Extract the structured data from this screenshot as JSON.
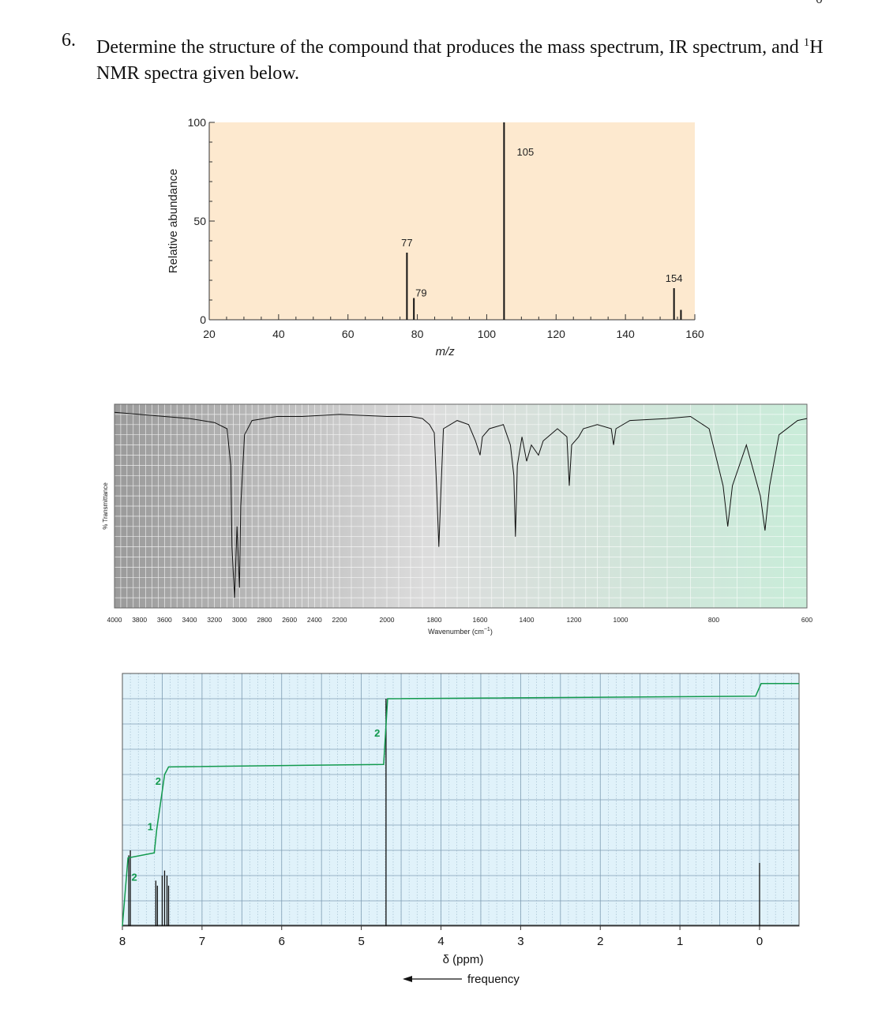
{
  "question": {
    "number": "6.",
    "text_before": "Determine the structure of the compound that produces the mass spectrum, IR spectrum, and ",
    "superscript": "1",
    "text_after": "H NMR spectra given below.",
    "corner_mark": "0"
  },
  "chart_data": [
    {
      "type": "bar",
      "name": "mass-spectrum",
      "xlabel": "m/z",
      "ylabel": "Relative abundance",
      "xlim": [
        20,
        160
      ],
      "ylim": [
        0,
        100
      ],
      "xticks": [
        20,
        40,
        60,
        80,
        100,
        120,
        140,
        160
      ],
      "yticks": [
        0,
        50,
        100
      ],
      "background": "#fde9cf",
      "peaks": [
        {
          "x": 77,
          "y": 34,
          "label": "77"
        },
        {
          "x": 79,
          "y": 11,
          "label": "79"
        },
        {
          "x": 105,
          "y": 100,
          "label": "105"
        },
        {
          "x": 154,
          "y": 16,
          "label": "154"
        },
        {
          "x": 156,
          "y": 5,
          "label": ""
        }
      ]
    },
    {
      "type": "line",
      "name": "ir-spectrum",
      "xlabel": "Wavenumber (cm",
      "xlabel_sup": "−1",
      "xlabel_close": ")",
      "ylabel": "% Transmittance",
      "xticks": [
        "4000",
        "3800",
        "3600",
        "3400",
        "3200",
        "3000",
        "2800",
        "2600",
        "2400",
        "2200",
        "2000",
        "1800",
        "1600",
        "1400",
        "1200",
        "1000",
        "800",
        "600"
      ],
      "xlim": [
        4000,
        600
      ],
      "ylim": [
        0,
        100
      ],
      "points": [
        [
          4000,
          96
        ],
        [
          3800,
          95
        ],
        [
          3600,
          94
        ],
        [
          3400,
          93
        ],
        [
          3200,
          91
        ],
        [
          3100,
          88
        ],
        [
          3070,
          70
        ],
        [
          3060,
          30
        ],
        [
          3040,
          5
        ],
        [
          3020,
          40
        ],
        [
          3000,
          10
        ],
        [
          2990,
          50
        ],
        [
          2960,
          85
        ],
        [
          2900,
          92
        ],
        [
          2700,
          94
        ],
        [
          2500,
          94
        ],
        [
          2200,
          95
        ],
        [
          2000,
          94
        ],
        [
          1900,
          94
        ],
        [
          1850,
          93
        ],
        [
          1820,
          90
        ],
        [
          1800,
          86
        ],
        [
          1790,
          60
        ],
        [
          1780,
          30
        ],
        [
          1770,
          60
        ],
        [
          1760,
          88
        ],
        [
          1700,
          92
        ],
        [
          1650,
          90
        ],
        [
          1620,
          82
        ],
        [
          1600,
          75
        ],
        [
          1590,
          84
        ],
        [
          1560,
          88
        ],
        [
          1500,
          90
        ],
        [
          1470,
          80
        ],
        [
          1455,
          65
        ],
        [
          1448,
          35
        ],
        [
          1440,
          70
        ],
        [
          1420,
          84
        ],
        [
          1400,
          72
        ],
        [
          1380,
          80
        ],
        [
          1350,
          75
        ],
        [
          1330,
          82
        ],
        [
          1300,
          85
        ],
        [
          1270,
          88
        ],
        [
          1230,
          84
        ],
        [
          1220,
          60
        ],
        [
          1210,
          80
        ],
        [
          1180,
          84
        ],
        [
          1160,
          88
        ],
        [
          1100,
          90
        ],
        [
          1040,
          88
        ],
        [
          1030,
          80
        ],
        [
          1020,
          88
        ],
        [
          980,
          92
        ],
        [
          900,
          93
        ],
        [
          850,
          94
        ],
        [
          810,
          88
        ],
        [
          780,
          60
        ],
        [
          770,
          40
        ],
        [
          760,
          60
        ],
        [
          730,
          80
        ],
        [
          700,
          55
        ],
        [
          690,
          38
        ],
        [
          680,
          60
        ],
        [
          660,
          85
        ],
        [
          620,
          92
        ],
        [
          600,
          93
        ]
      ]
    },
    {
      "type": "line",
      "name": "h-nmr-spectrum",
      "xlabel": "δ (ppm)",
      "frequency_label": "frequency",
      "xlim": [
        8,
        0
      ],
      "xticks": [
        "8",
        "7",
        "6",
        "5",
        "4",
        "3",
        "2",
        "1",
        "0"
      ],
      "background": "#e0f2fa",
      "peaks": [
        {
          "ppm": 7.92,
          "h": 0.28
        },
        {
          "ppm": 7.9,
          "h": 0.3
        },
        {
          "ppm": 7.58,
          "h": 0.18
        },
        {
          "ppm": 7.56,
          "h": 0.16
        },
        {
          "ppm": 7.5,
          "h": 0.2
        },
        {
          "ppm": 7.47,
          "h": 0.22
        },
        {
          "ppm": 7.44,
          "h": 0.2
        },
        {
          "ppm": 7.42,
          "h": 0.16
        },
        {
          "ppm": 4.69,
          "h": 0.9
        },
        {
          "ppm": 0.0,
          "h": 0.25
        }
      ],
      "integration_labels": [
        {
          "ppm": 7.85,
          "label": "2"
        },
        {
          "ppm": 7.65,
          "label": "1"
        },
        {
          "ppm": 7.55,
          "label": "2"
        },
        {
          "ppm": 4.8,
          "label": "2"
        }
      ]
    }
  ]
}
